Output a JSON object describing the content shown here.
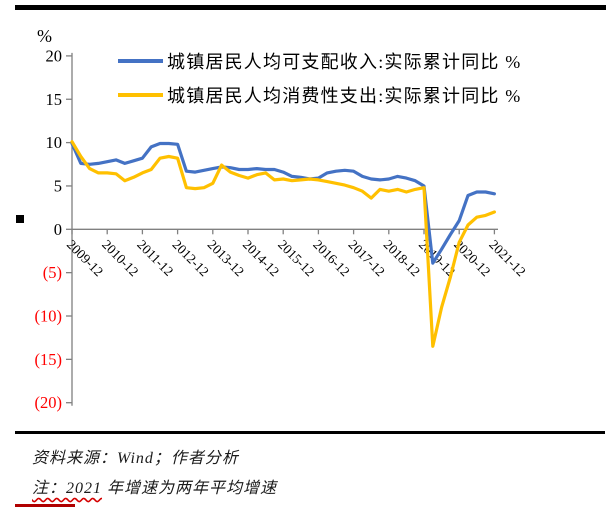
{
  "footer": {
    "source_line": "资料来源：Wind；作者分析",
    "note_underlined": "注：2021",
    "note_rest": " 年增速为两年平均增速"
  },
  "chart_data": {
    "type": "line",
    "unit_label": "%",
    "axis_color": "#808080",
    "tick_color": "#000000",
    "negative_tick_color": "#ff0000",
    "ylim": [
      -20,
      20
    ],
    "grid": "off",
    "legend_position": "top",
    "y_ticks": [
      {
        "value": 20,
        "label": "20"
      },
      {
        "value": 15,
        "label": "15"
      },
      {
        "value": 10,
        "label": "10"
      },
      {
        "value": 5,
        "label": "5"
      },
      {
        "value": 0,
        "label": "0"
      },
      {
        "value": -5,
        "label": "(5)"
      },
      {
        "value": -10,
        "label": "(10)"
      },
      {
        "value": -15,
        "label": "(15)"
      },
      {
        "value": -20,
        "label": "(20)"
      }
    ],
    "x_tick_labels": [
      "2009-12",
      "2010-12",
      "2011-12",
      "2012-12",
      "2013-12",
      "2014-12",
      "2015-12",
      "2016-12",
      "2017-12",
      "2018-12",
      "2019-12",
      "2020-12",
      "2021-12"
    ],
    "x": [
      "2009-12",
      "2010-03",
      "2010-06",
      "2010-09",
      "2010-12",
      "2011-03",
      "2011-06",
      "2011-09",
      "2011-12",
      "2012-03",
      "2012-06",
      "2012-09",
      "2012-12",
      "2013-03",
      "2013-06",
      "2013-09",
      "2013-12",
      "2014-03",
      "2014-06",
      "2014-09",
      "2014-12",
      "2015-03",
      "2015-06",
      "2015-09",
      "2015-12",
      "2016-03",
      "2016-06",
      "2016-09",
      "2016-12",
      "2017-03",
      "2017-06",
      "2017-09",
      "2017-12",
      "2018-03",
      "2018-06",
      "2018-09",
      "2018-12",
      "2019-03",
      "2019-06",
      "2019-09",
      "2019-12",
      "2020-03",
      "2020-06",
      "2020-09",
      "2020-12",
      "2021-03",
      "2021-06",
      "2021-09",
      "2021-12"
    ],
    "series": [
      {
        "name": "城镇居民人均可支配收入:实际累计同比 %",
        "color": "#4472c4",
        "values": [
          9.9,
          7.6,
          7.5,
          7.6,
          7.8,
          8.0,
          7.6,
          7.9,
          8.2,
          9.5,
          9.9,
          9.9,
          9.8,
          6.7,
          6.6,
          6.8,
          7.0,
          7.2,
          7.1,
          6.9,
          6.9,
          7.0,
          6.9,
          6.9,
          6.6,
          6.1,
          6.0,
          5.8,
          5.9,
          6.5,
          6.7,
          6.8,
          6.7,
          6.1,
          5.8,
          5.7,
          5.8,
          6.1,
          5.9,
          5.6,
          5.0,
          -3.9,
          -2.3,
          -0.6,
          1.0,
          3.9,
          4.3,
          4.3,
          4.1
        ]
      },
      {
        "name": "城镇居民人均消费性支出:实际累计同比 %",
        "color": "#ffc000",
        "values": [
          10.1,
          8.4,
          7.0,
          6.5,
          6.5,
          6.4,
          5.6,
          6.0,
          6.5,
          6.9,
          8.2,
          8.4,
          8.2,
          4.8,
          4.7,
          4.8,
          5.3,
          7.4,
          6.6,
          6.2,
          5.9,
          6.3,
          6.5,
          5.7,
          5.8,
          5.6,
          5.7,
          5.8,
          5.7,
          5.5,
          5.3,
          5.1,
          4.8,
          4.4,
          3.6,
          4.6,
          4.4,
          4.6,
          4.3,
          4.6,
          4.8,
          -13.5,
          -9.0,
          -5.5,
          -1.5,
          0.5,
          1.4,
          1.6,
          2.0
        ]
      }
    ]
  }
}
